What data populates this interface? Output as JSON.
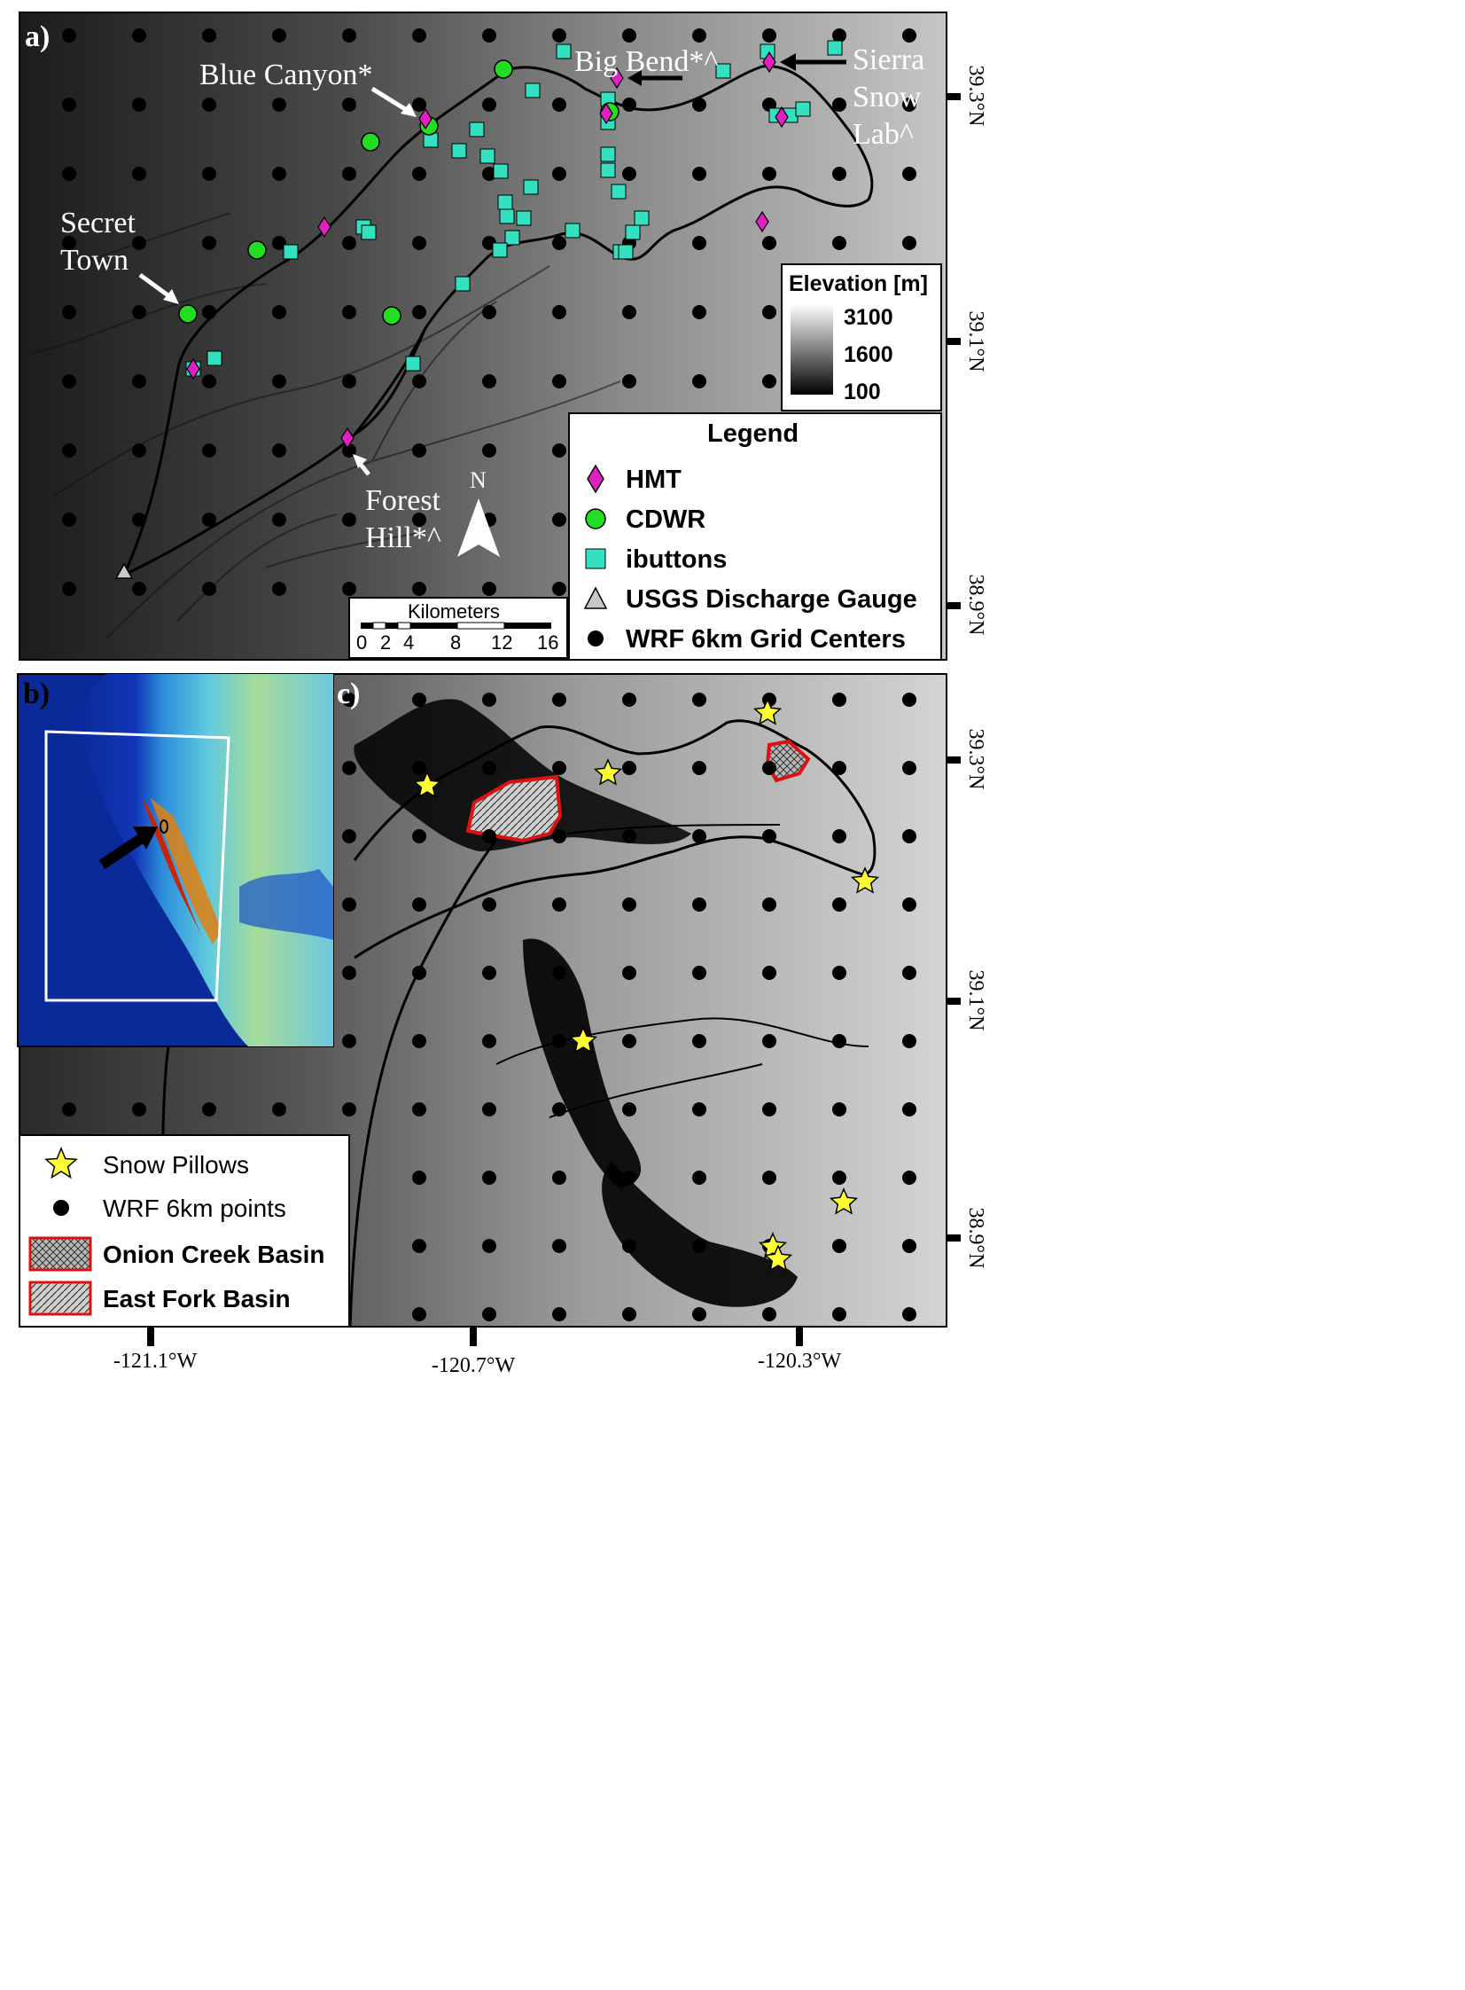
{
  "panels": {
    "a": {
      "label": "a)",
      "annotations": [
        {
          "id": "blue-canyon",
          "text": "Blue Canyon*"
        },
        {
          "id": "big-bend",
          "text": "Big  Bend*^"
        },
        {
          "id": "sierra-1",
          "text": "Sierra"
        },
        {
          "id": "sierra-2",
          "text": "Snow"
        },
        {
          "id": "sierra-3",
          "text": "Lab^"
        },
        {
          "id": "secret-1",
          "text": "Secret"
        },
        {
          "id": "secret-2",
          "text": "Town"
        },
        {
          "id": "forest-1",
          "text": "Forest"
        },
        {
          "id": "forest-2",
          "text": "Hill*^"
        }
      ],
      "north_arrow": "N",
      "elevation_bar": {
        "title": "Elevation [m]",
        "ticks": [
          "3100",
          "1600",
          "100"
        ]
      },
      "scale_bar": {
        "title": "Kilometers",
        "ticks": [
          "0",
          "2",
          "4",
          "8",
          "12",
          "16"
        ]
      },
      "legend": {
        "title": "Legend",
        "items": [
          {
            "symbol": "diamond",
            "color": "#e020c0",
            "label": "HMT"
          },
          {
            "symbol": "circle",
            "color": "#22dd22",
            "label": "CDWR"
          },
          {
            "symbol": "square",
            "color": "#33e0c0",
            "label": "ibuttons"
          },
          {
            "symbol": "triangle",
            "color": "#c8c8c8",
            "label": "USGS Discharge Gauge"
          },
          {
            "symbol": "dot",
            "color": "#000000",
            "label": "WRF 6km Grid Centers"
          }
        ]
      }
    },
    "b": {
      "label": "b)"
    },
    "c": {
      "label": "c)",
      "legend": {
        "items": [
          {
            "symbol": "star",
            "color": "#ffff33",
            "label": "Snow Pillows",
            "bold": false
          },
          {
            "symbol": "dot",
            "color": "#000000",
            "label": "WRF 6km points",
            "bold": false
          },
          {
            "symbol": "crosshatch",
            "color": "#dd1111",
            "label": "Onion Creek Basin",
            "bold": true
          },
          {
            "symbol": "hatch",
            "color": "#dd1111",
            "label": "East Fork Basin",
            "bold": true
          }
        ]
      }
    }
  },
  "axes": {
    "lat_ticks": [
      "39.3°N",
      "39.1°N",
      "38.9°N",
      "39.3°N",
      "39.1°N",
      "38.9°N"
    ],
    "lon_ticks": [
      "-121.1°W",
      "-120.7°W",
      "-120.3°W"
    ]
  }
}
